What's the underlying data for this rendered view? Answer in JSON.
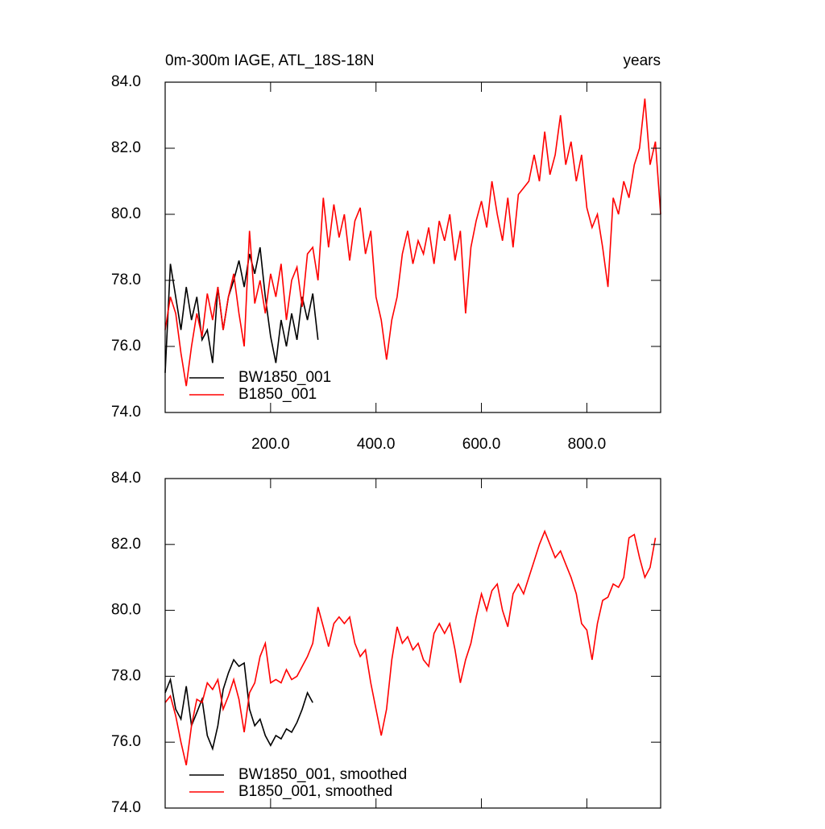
{
  "chart_data": [
    {
      "type": "line",
      "title": "0m-300m IAGE, ATL_18S-18N",
      "right_title": "years",
      "xlim": [
        0,
        940
      ],
      "ylim": [
        74,
        84
      ],
      "xticks": [
        {
          "value": 200,
          "label": "200.0"
        },
        {
          "value": 400,
          "label": "400.0"
        },
        {
          "value": 600,
          "label": "600.0"
        },
        {
          "value": 800,
          "label": "800.0"
        }
      ],
      "yticks": [
        {
          "value": 74,
          "label": "74.0"
        },
        {
          "value": 76,
          "label": "76.0"
        },
        {
          "value": 78,
          "label": "78.0"
        },
        {
          "value": 80,
          "label": "80.0"
        },
        {
          "value": 82,
          "label": "82.0"
        },
        {
          "value": 84,
          "label": "84.0"
        }
      ],
      "series": [
        {
          "name": "BW1850_001",
          "color": "#000000",
          "x": [
            0,
            10,
            20,
            30,
            40,
            50,
            60,
            70,
            80,
            90,
            100,
            110,
            120,
            130,
            140,
            150,
            160,
            170,
            180,
            190,
            200,
            210,
            220,
            230,
            240,
            250,
            260,
            270,
            280,
            290
          ],
          "values": [
            75.2,
            78.5,
            77.5,
            76.5,
            77.8,
            76.8,
            77.5,
            76.2,
            76.5,
            75.5,
            77.8,
            76.5,
            77.5,
            78.0,
            78.6,
            77.8,
            78.8,
            78.2,
            79.0,
            77.5,
            76.3,
            75.5,
            76.8,
            76.0,
            77.0,
            76.2,
            77.5,
            76.8,
            77.6,
            76.2
          ]
        },
        {
          "name": "B1850_001",
          "color": "#ff0000",
          "x": [
            0,
            10,
            20,
            30,
            40,
            50,
            60,
            70,
            80,
            90,
            100,
            110,
            120,
            130,
            140,
            150,
            160,
            170,
            180,
            190,
            200,
            210,
            220,
            230,
            240,
            250,
            260,
            270,
            280,
            290,
            300,
            310,
            320,
            330,
            340,
            350,
            360,
            370,
            380,
            390,
            400,
            410,
            420,
            430,
            440,
            450,
            460,
            470,
            480,
            490,
            500,
            510,
            520,
            530,
            540,
            550,
            560,
            570,
            580,
            590,
            600,
            610,
            620,
            630,
            640,
            650,
            660,
            670,
            680,
            690,
            700,
            710,
            720,
            730,
            740,
            750,
            760,
            770,
            780,
            790,
            800,
            810,
            820,
            830,
            840,
            850,
            860,
            870,
            880,
            890,
            900,
            910,
            920,
            930,
            940
          ],
          "values": [
            76.5,
            77.5,
            77.0,
            75.8,
            74.8,
            76.0,
            77.0,
            76.3,
            77.6,
            76.8,
            77.8,
            76.5,
            77.5,
            78.2,
            77.0,
            76.0,
            79.5,
            77.3,
            78.0,
            77.0,
            78.2,
            77.5,
            78.5,
            76.8,
            78.0,
            78.4,
            77.2,
            78.8,
            79.0,
            78.0,
            80.5,
            79.0,
            80.3,
            79.3,
            80.0,
            78.6,
            79.8,
            80.2,
            78.8,
            79.5,
            77.5,
            76.8,
            75.6,
            76.8,
            77.5,
            78.8,
            79.5,
            78.5,
            79.2,
            78.8,
            79.6,
            78.5,
            79.8,
            79.2,
            80.0,
            78.6,
            79.5,
            77.0,
            79.0,
            79.8,
            80.4,
            79.6,
            81.0,
            80.0,
            79.2,
            80.5,
            79.0,
            80.6,
            80.8,
            81.0,
            81.8,
            81.0,
            82.5,
            81.2,
            81.8,
            83.0,
            81.5,
            82.2,
            81.0,
            81.8,
            80.2,
            79.6,
            80.0,
            79.0,
            77.8,
            80.5,
            80.0,
            81.0,
            80.5,
            81.5,
            82.0,
            83.5,
            81.5,
            82.2,
            80.0
          ]
        }
      ]
    },
    {
      "type": "line",
      "xlim": [
        0,
        940
      ],
      "ylim": [
        74,
        84
      ],
      "xticks": [
        200,
        400,
        600,
        800
      ],
      "yticks": [
        {
          "value": 74,
          "label": "74.0"
        },
        {
          "value": 76,
          "label": "76.0"
        },
        {
          "value": 78,
          "label": "78.0"
        },
        {
          "value": 80,
          "label": "80.0"
        },
        {
          "value": 82,
          "label": "82.0"
        },
        {
          "value": 84,
          "label": "84.0"
        }
      ],
      "series": [
        {
          "name": "BW1850_001, smoothed",
          "color": "#000000",
          "x": [
            0,
            10,
            20,
            30,
            40,
            50,
            60,
            70,
            80,
            90,
            100,
            110,
            120,
            130,
            140,
            150,
            160,
            170,
            180,
            190,
            200,
            210,
            220,
            230,
            240,
            250,
            260,
            270,
            280
          ],
          "values": [
            77.5,
            77.9,
            77.0,
            76.7,
            77.7,
            76.5,
            76.9,
            77.3,
            76.2,
            75.8,
            76.5,
            77.6,
            78.1,
            78.5,
            78.3,
            78.4,
            77.0,
            76.5,
            76.7,
            76.2,
            75.9,
            76.2,
            76.1,
            76.4,
            76.3,
            76.6,
            77.0,
            77.5,
            77.2
          ]
        },
        {
          "name": "B1850_001, smoothed",
          "color": "#ff0000",
          "x": [
            0,
            10,
            20,
            30,
            40,
            50,
            60,
            70,
            80,
            90,
            100,
            110,
            120,
            130,
            140,
            150,
            160,
            170,
            180,
            190,
            200,
            210,
            220,
            230,
            240,
            250,
            260,
            270,
            280,
            290,
            300,
            310,
            320,
            330,
            340,
            350,
            360,
            370,
            380,
            390,
            400,
            410,
            420,
            430,
            440,
            450,
            460,
            470,
            480,
            490,
            500,
            510,
            520,
            530,
            540,
            550,
            560,
            570,
            580,
            590,
            600,
            610,
            620,
            630,
            640,
            650,
            660,
            670,
            680,
            690,
            700,
            710,
            720,
            730,
            740,
            750,
            760,
            770,
            780,
            790,
            800,
            810,
            820,
            830,
            840,
            850,
            860,
            870,
            880,
            890,
            900,
            910,
            920,
            930
          ],
          "values": [
            77.2,
            77.4,
            76.8,
            76.0,
            75.3,
            76.5,
            77.3,
            77.2,
            77.8,
            77.6,
            77.9,
            77.0,
            77.4,
            77.9,
            77.3,
            76.3,
            77.5,
            77.8,
            78.6,
            79.0,
            77.8,
            77.9,
            77.8,
            78.2,
            77.9,
            78.0,
            78.3,
            78.6,
            79.0,
            80.1,
            79.5,
            78.9,
            79.6,
            79.8,
            79.6,
            79.8,
            79.0,
            78.6,
            78.8,
            77.8,
            77.0,
            76.2,
            77.0,
            78.5,
            79.5,
            79.0,
            79.2,
            78.8,
            79.0,
            78.5,
            78.3,
            79.3,
            79.6,
            79.3,
            79.6,
            78.8,
            77.8,
            78.5,
            79.0,
            79.8,
            80.5,
            80.0,
            80.6,
            80.8,
            80.0,
            79.5,
            80.5,
            80.8,
            80.5,
            81.0,
            81.5,
            82.0,
            82.4,
            82.0,
            81.6,
            81.8,
            81.4,
            81.0,
            80.5,
            79.6,
            79.4,
            78.5,
            79.6,
            80.3,
            80.4,
            80.8,
            80.7,
            81.0,
            82.2,
            82.3,
            81.6,
            81.0,
            81.3,
            82.2
          ]
        }
      ]
    }
  ]
}
